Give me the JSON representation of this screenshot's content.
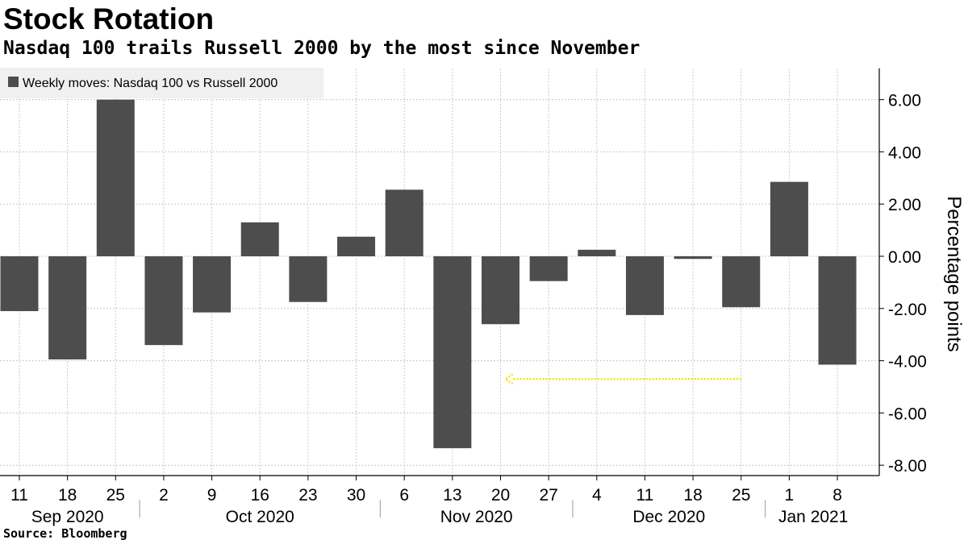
{
  "title": "Stock Rotation",
  "subtitle": "Nasdaq 100 trails Russell 2000 by the most since November",
  "source": "Source:  Bloomberg",
  "colors": {
    "bar": "#4d4d4d",
    "grid": "#c8c8c8",
    "annotation_arrow": "#f5e400",
    "legend_bg": "#f0f0f0"
  },
  "chart_data": {
    "type": "bar",
    "legend": {
      "label": "Weekly moves: Nasdaq 100 vs Russell 2000",
      "placement": "top-left"
    },
    "categories": [
      "11",
      "18",
      "25",
      "2",
      "9",
      "16",
      "23",
      "30",
      "6",
      "13",
      "20",
      "27",
      "4",
      "11",
      "18",
      "25",
      "1",
      "8"
    ],
    "series": [
      {
        "name": "Weekly moves: Nasdaq 100 vs Russell 2000",
        "values": [
          -2.1,
          -3.95,
          6.0,
          -3.4,
          -2.15,
          1.3,
          -1.75,
          0.75,
          2.55,
          -7.35,
          -2.6,
          -0.95,
          0.25,
          -2.25,
          -0.1,
          -1.95,
          2.85,
          -4.15
        ]
      }
    ],
    "month_labels": [
      {
        "label": "Sep 2020",
        "first_index": 0,
        "last_index": 2
      },
      {
        "label": "Oct 2020",
        "first_index": 3,
        "last_index": 7
      },
      {
        "label": "Nov 2020",
        "first_index": 8,
        "last_index": 11
      },
      {
        "label": "Dec 2020",
        "first_index": 12,
        "last_index": 15
      },
      {
        "label": "Jan 2021",
        "first_index": 16,
        "last_index": 17
      }
    ],
    "ylabel": "Percentage points",
    "y_axis_position": "right",
    "yticks": [
      "6.00",
      "4.00",
      "2.00",
      "0.00",
      "-2.00",
      "-4.00",
      "-6.00",
      "-8.00"
    ],
    "ylim": [
      -8.4,
      7.2
    ],
    "grid": true,
    "annotation": {
      "type": "arrow",
      "from_index": 15,
      "to_index": 10,
      "y": -4.7
    }
  }
}
